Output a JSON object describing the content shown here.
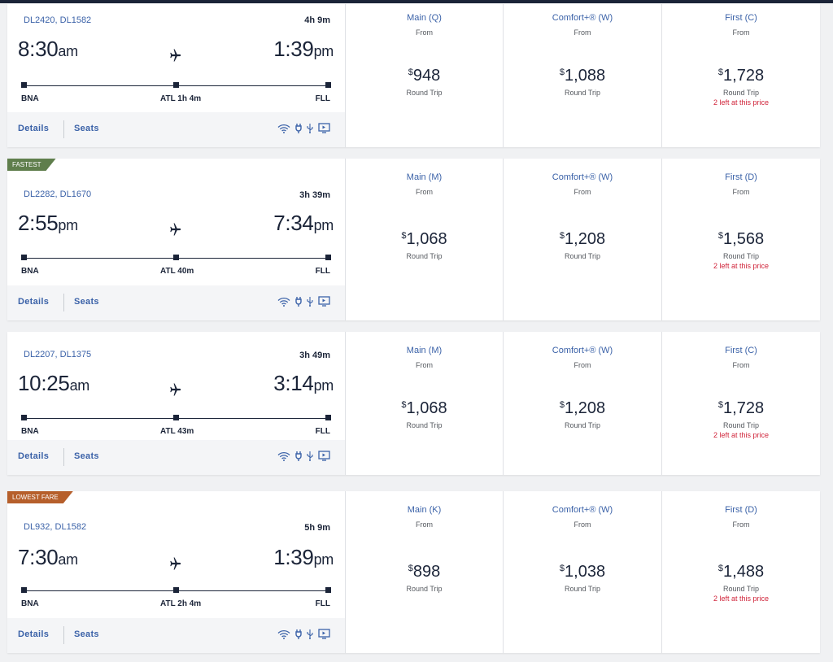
{
  "flights": [
    {
      "flight_numbers": "DL2420, DL1582",
      "duration": "4h 9m",
      "depart": {
        "time": "8:30",
        "suffix": "am"
      },
      "arrive": {
        "time": "1:39",
        "suffix": "pm"
      },
      "origin": "BNA",
      "connection": "ATL 1h 4m",
      "destination": "FLL",
      "details_label": "Details",
      "seats_label": "Seats",
      "badge": "",
      "fares": [
        {
          "cabin": "Main (Q)",
          "from": "From",
          "currency": "$",
          "price": "948",
          "trip": "Round Trip",
          "note": ""
        },
        {
          "cabin": "Comfort+® (W)",
          "from": "From",
          "currency": "$",
          "price": "1,088",
          "trip": "Round Trip",
          "note": ""
        },
        {
          "cabin": "First (C)",
          "from": "From",
          "currency": "$",
          "price": "1,728",
          "trip": "Round Trip",
          "note": "2 left at this price"
        }
      ]
    },
    {
      "flight_numbers": "DL2282, DL1670",
      "duration": "3h 39m",
      "depart": {
        "time": "2:55",
        "suffix": "pm"
      },
      "arrive": {
        "time": "7:34",
        "suffix": "pm"
      },
      "origin": "BNA",
      "connection": "ATL 40m",
      "destination": "FLL",
      "details_label": "Details",
      "seats_label": "Seats",
      "badge": "FASTEST",
      "fares": [
        {
          "cabin": "Main (M)",
          "from": "From",
          "currency": "$",
          "price": "1,068",
          "trip": "Round Trip",
          "note": ""
        },
        {
          "cabin": "Comfort+® (W)",
          "from": "From",
          "currency": "$",
          "price": "1,208",
          "trip": "Round Trip",
          "note": ""
        },
        {
          "cabin": "First (D)",
          "from": "From",
          "currency": "$",
          "price": "1,568",
          "trip": "Round Trip",
          "note": "2 left at this price"
        }
      ]
    },
    {
      "flight_numbers": "DL2207, DL1375",
      "duration": "3h 49m",
      "depart": {
        "time": "10:25",
        "suffix": "am"
      },
      "arrive": {
        "time": "3:14",
        "suffix": "pm"
      },
      "origin": "BNA",
      "connection": "ATL 43m",
      "destination": "FLL",
      "details_label": "Details",
      "seats_label": "Seats",
      "badge": "",
      "fares": [
        {
          "cabin": "Main (M)",
          "from": "From",
          "currency": "$",
          "price": "1,068",
          "trip": "Round Trip",
          "note": ""
        },
        {
          "cabin": "Comfort+® (W)",
          "from": "From",
          "currency": "$",
          "price": "1,208",
          "trip": "Round Trip",
          "note": ""
        },
        {
          "cabin": "First (C)",
          "from": "From",
          "currency": "$",
          "price": "1,728",
          "trip": "Round Trip",
          "note": "2 left at this price"
        }
      ]
    },
    {
      "flight_numbers": "DL932, DL1582",
      "duration": "5h 9m",
      "depart": {
        "time": "7:30",
        "suffix": "am"
      },
      "arrive": {
        "time": "1:39",
        "suffix": "pm"
      },
      "origin": "BNA",
      "connection": "ATL 2h 4m",
      "destination": "FLL",
      "details_label": "Details",
      "seats_label": "Seats",
      "badge": "LOWEST FARE",
      "fares": [
        {
          "cabin": "Main (K)",
          "from": "From",
          "currency": "$",
          "price": "898",
          "trip": "Round Trip",
          "note": ""
        },
        {
          "cabin": "Comfort+® (W)",
          "from": "From",
          "currency": "$",
          "price": "1,038",
          "trip": "Round Trip",
          "note": ""
        },
        {
          "cabin": "First (D)",
          "from": "From",
          "currency": "$",
          "price": "1,488",
          "trip": "Round Trip",
          "note": "2 left at this price"
        }
      ]
    }
  ],
  "amenity_icons": [
    "wifi-icon",
    "power-outlet-icon",
    "usb-icon",
    "seatback-screen-icon"
  ],
  "colors": {
    "navy": "#1b2438",
    "link_blue": "#3b62a8",
    "alert_red": "#d0243a",
    "fastest_green": "#5f7e4c",
    "lowest_orange": "#b65f2b"
  }
}
